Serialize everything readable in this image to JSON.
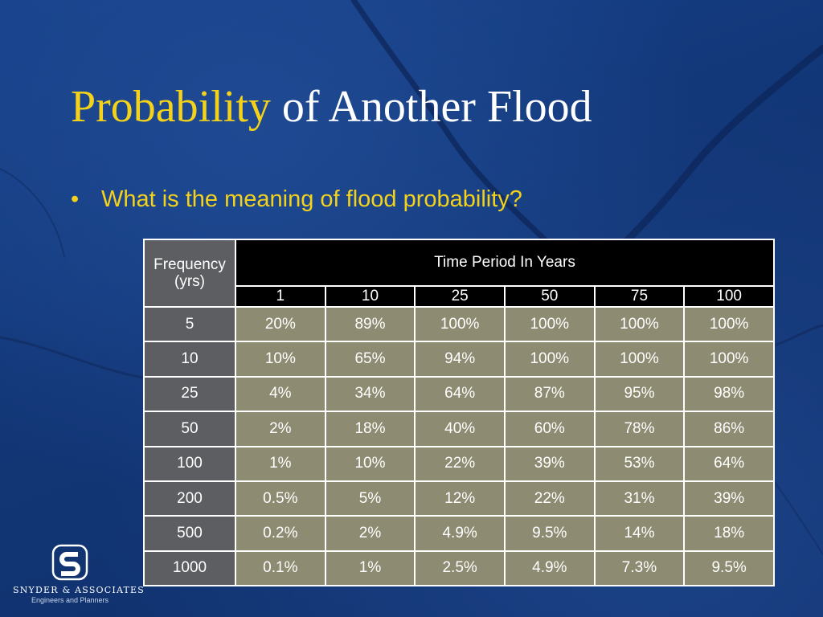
{
  "slide": {
    "title_accent": "Probability",
    "title_rest": "of Another Flood",
    "bullet": "What is the meaning of flood probability?",
    "bullet_symbol": "•"
  },
  "table": {
    "corner_label_line1": "Frequency",
    "corner_label_line2": "(yrs)",
    "span_header": "Time Period In Years",
    "periods": [
      "1",
      "10",
      "25",
      "50",
      "75",
      "100"
    ],
    "rows": [
      {
        "frequency": "5",
        "values": [
          "20%",
          "89%",
          "100%",
          "100%",
          "100%",
          "100%"
        ]
      },
      {
        "frequency": "10",
        "values": [
          "10%",
          "65%",
          "94%",
          "100%",
          "100%",
          "100%"
        ]
      },
      {
        "frequency": "25",
        "values": [
          "4%",
          "34%",
          "64%",
          "87%",
          "95%",
          "98%"
        ]
      },
      {
        "frequency": "50",
        "values": [
          "2%",
          "18%",
          "40%",
          "60%",
          "78%",
          "86%"
        ]
      },
      {
        "frequency": "100",
        "values": [
          "1%",
          "10%",
          "22%",
          "39%",
          "53%",
          "64%"
        ]
      },
      {
        "frequency": "200",
        "values": [
          "0.5%",
          "5%",
          "12%",
          "22%",
          "31%",
          "39%"
        ]
      },
      {
        "frequency": "500",
        "values": [
          "0.2%",
          "2%",
          "4.9%",
          "9.5%",
          "14%",
          "18%"
        ]
      },
      {
        "frequency": "1000",
        "values": [
          "0.1%",
          "1%",
          "2.5%",
          "4.9%",
          "7.3%",
          "9.5%"
        ]
      }
    ]
  },
  "logo": {
    "name": "SNYDER & ASSOCIATES",
    "tagline": "Engineers and Planners",
    "icon": "snyder-s-logo"
  },
  "colors": {
    "background": "#14387a",
    "title_accent": "#f4d21a",
    "header_black": "#000000",
    "frequency_gray": "#5d5e62",
    "cell_olive": "#8d8b71"
  }
}
